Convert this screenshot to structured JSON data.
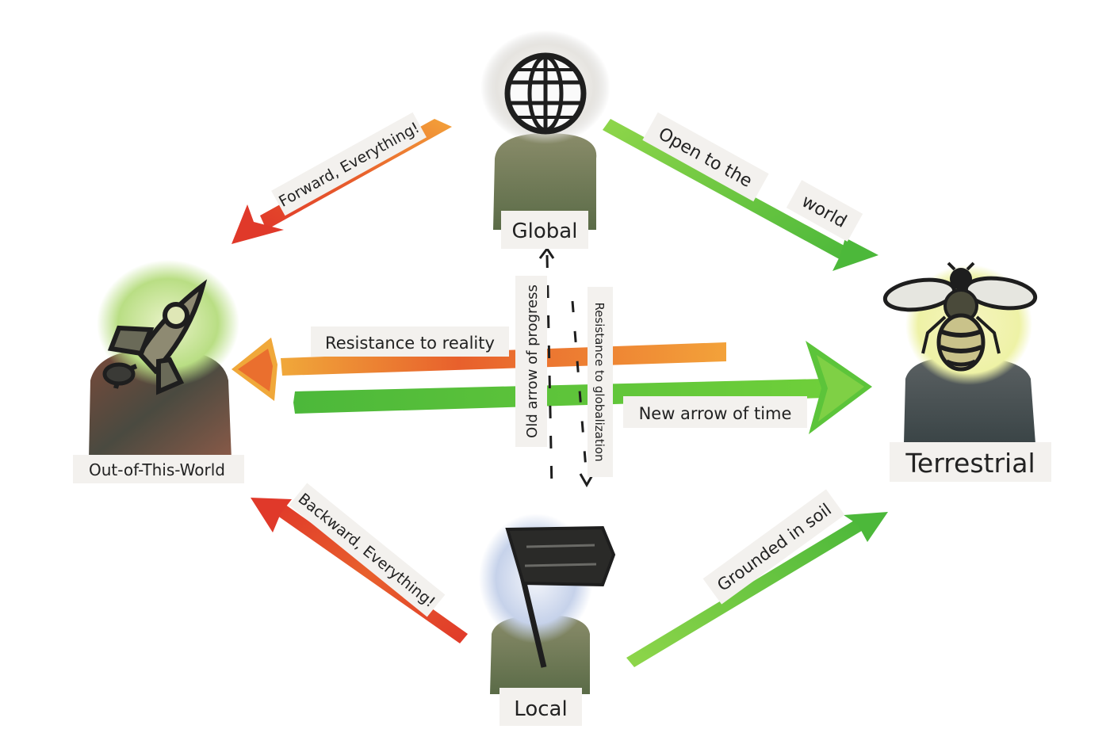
{
  "nodes": {
    "global": "Global",
    "out_of_this_world": "Out-of-This-World",
    "terrestrial": "Terrestrial",
    "local": "Local"
  },
  "arrows": {
    "forward": "Forward, Everything!",
    "open_line1": "Open to the",
    "open_line2": "world",
    "resistance_reality": "Resistance to reality",
    "new_time": "New arrow of time",
    "backward": "Backward, Everything!",
    "grounded": "Grounded in soil",
    "old_progress": "Old arrow of progress",
    "resistance_global": "Resistance to globalization"
  },
  "icons": {
    "global": "globe-icon",
    "out_of_this_world": "rocket-icon",
    "terrestrial": "bee-icon",
    "local": "flag-icon"
  },
  "colors": {
    "red": "#e0392a",
    "orange": "#f07a2a",
    "yellow": "#f0c43a",
    "green": "#4cb83a",
    "light_green": "#8fd64a",
    "dark": "#1e1e1e"
  }
}
